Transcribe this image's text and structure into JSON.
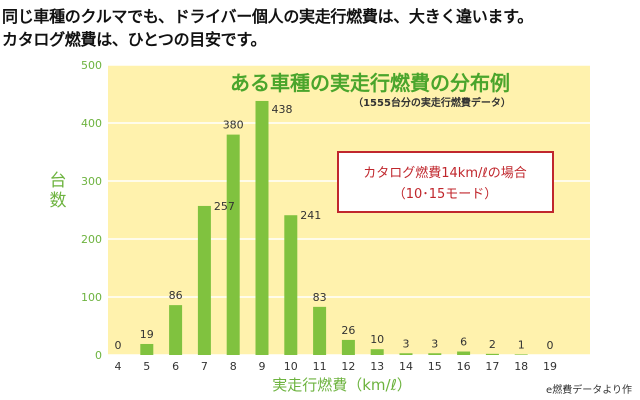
{
  "headline": {
    "line1": "同じ車種のクルマでも、ドライバー個人の実走行燃費は、大きく違います。",
    "line2": "カタログ燃費は、ひとつの目安です。"
  },
  "source_note": "e燃費データより作",
  "colors": {
    "bar": "#80c23f",
    "plot_bg": "#fff2ad",
    "grid": "#ffffff",
    "title": "#4aa52c",
    "axis_text": "#6db33f",
    "annotation_border": "#c0272d",
    "annotation_text": "#c0272d"
  },
  "chart_data": {
    "type": "bar",
    "title": "ある車種の実走行燃費の分布例",
    "subtitle": "（1555台分の実走行燃費データ）",
    "xlabel": "実走行燃費（km/ℓ）",
    "ylabel": "台数",
    "x_ticks": [
      "4",
      "5",
      "6",
      "7",
      "8",
      "9",
      "10",
      "11",
      "12",
      "13",
      "14",
      "15",
      "16",
      "17",
      "18",
      "19"
    ],
    "y_ticks": [
      "0",
      "100",
      "200",
      "300",
      "400",
      "500"
    ],
    "ylim": [
      0,
      500
    ],
    "xlim": [
      4,
      19
    ],
    "grid": true,
    "categories": [
      "4",
      "5",
      "6",
      "7",
      "8",
      "9",
      "10",
      "11",
      "12",
      "13",
      "14",
      "15",
      "16",
      "17",
      "18",
      "19"
    ],
    "values": [
      0,
      19,
      86,
      257,
      380,
      438,
      241,
      83,
      26,
      10,
      3,
      3,
      6,
      2,
      1,
      0
    ],
    "value_labels": [
      "0",
      "19",
      "86",
      "257",
      "380",
      "438",
      "241",
      "83",
      "26",
      "10",
      "3",
      "3",
      "6",
      "2",
      "1",
      "0"
    ],
    "annotation": {
      "line1": "カタログ燃費14km/ℓの場合",
      "line2": "（10･15モード）"
    }
  }
}
